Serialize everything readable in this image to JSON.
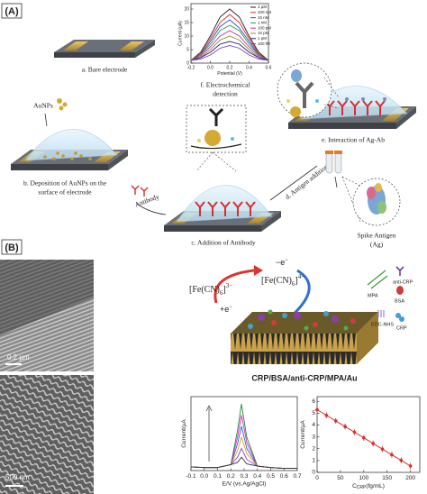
{
  "panel_a": {
    "label": "(A)",
    "steps": {
      "a": "a. Bare electrode",
      "b": [
        "b. Deposition of AuNPs on the",
        "surface of electrode"
      ],
      "c": "c. Addition of Antibody",
      "d": "d. Antigen addition",
      "e": "e. Interaction of Ag-Ab",
      "f": [
        "f. Electrochemical",
        "detection"
      ]
    },
    "aunps": "AuNPs",
    "antibody": "Antibody",
    "spike": [
      "Spike Antigen",
      "(Ag)"
    ]
  },
  "panel_b": {
    "label": "(B)",
    "scale_top": "0.2 µm",
    "scale_bottom": "500 nm",
    "redox": {
      "ox": {
        "open": "[Fe(CN)",
        "sub": "6",
        "close": "]",
        "sup": "3−"
      },
      "red": {
        "open": "[Fe(CN)",
        "sub": "6",
        "close": "]",
        "sup": "4−"
      },
      "minus_e": {
        "sign": "−e",
        "sup": "−"
      },
      "plus_e": {
        "sign": "+e",
        "sup": "−"
      }
    },
    "legend": [
      "MPA",
      "anti-CRP",
      "BSA",
      "EDC-NHS",
      "CRP"
    ],
    "caption": "CRP/BSA/anti-CRP/MPA/Au"
  },
  "chart_data": [
    {
      "type": "line",
      "x_label": "Potential (V)",
      "y_label": "Current (µA)",
      "x": [
        -0.2,
        -0.1,
        0,
        0.1,
        0.2,
        0.3,
        0.4,
        0.5,
        0.6
      ],
      "xlim": [
        -0.2,
        0.6
      ],
      "xticks": [
        -0.2,
        {
          "value": 0,
          "label": "0.0"
        },
        0.2,
        0.4,
        0.6
      ],
      "ylim": [
        0,
        22
      ],
      "yticks": [
        0,
        5,
        10,
        15,
        20
      ],
      "series": [
        {
          "name": "1 µM",
          "color": "#222222",
          "values": [
            1,
            4,
            10,
            17,
            20,
            17,
            10,
            4,
            1
          ]
        },
        {
          "name": "100 nM",
          "color": "#e02424",
          "values": [
            1,
            3.5,
            9,
            15,
            18,
            15,
            9,
            3.5,
            1
          ]
        },
        {
          "name": "10 nM",
          "color": "#2050d0",
          "values": [
            1,
            3,
            8,
            13.5,
            16,
            13,
            8,
            3,
            1
          ]
        },
        {
          "name": "1 nM",
          "color": "#20a040",
          "values": [
            1,
            3,
            7,
            12,
            14,
            12,
            7,
            3,
            1
          ]
        },
        {
          "name": "100 pM",
          "color": "#d020c0",
          "values": [
            1,
            2.5,
            6,
            10,
            12,
            10,
            6,
            2.5,
            1
          ]
        },
        {
          "name": "10 pM",
          "color": "#909020",
          "values": [
            1,
            2,
            5,
            8.5,
            10,
            8.5,
            5,
            2,
            1
          ]
        },
        {
          "name": "1 pM",
          "color": "#102080",
          "values": [
            1,
            2,
            4,
            7,
            8,
            7,
            4,
            2,
            1
          ]
        },
        {
          "name": "100 fM",
          "color": "#8040c0",
          "values": [
            1,
            1.5,
            3,
            5.5,
            6.5,
            5.5,
            3,
            1.5,
            1
          ]
        }
      ]
    },
    {
      "type": "line",
      "x_label": "E/V (vs.Ag/AgCl)",
      "y_label": "Current/µA",
      "x": [
        -0.1,
        0,
        0.1,
        0.2,
        0.25,
        0.28,
        0.32,
        0.4,
        0.5,
        0.6,
        0.7
      ],
      "xlim": [
        -0.1,
        0.7
      ],
      "xticks": [
        -0.1,
        {
          "value": 0,
          "label": "0.0"
        },
        0.1,
        0.2,
        0.3,
        0.4,
        0.5,
        0.6,
        0.7
      ],
      "ylim": [
        0,
        10
      ],
      "series": [
        {
          "color": "#1b8a3a",
          "values": [
            0.5,
            0.4,
            0.4,
            0.8,
            5.4,
            9,
            4.5,
            0.6,
            0.4,
            0.3,
            0.3
          ]
        },
        {
          "color": "#d62fb8",
          "values": [
            0.5,
            0.4,
            0.4,
            0.8,
            4.5,
            7.5,
            3.8,
            0.6,
            0.4,
            0.3,
            0.3
          ]
        },
        {
          "color": "#2f5fd6",
          "values": [
            0.5,
            0.4,
            0.4,
            0.8,
            3.6,
            6,
            3,
            0.6,
            0.4,
            0.3,
            0.3
          ]
        },
        {
          "color": "#e0a020",
          "values": [
            0.5,
            0.4,
            0.4,
            0.8,
            2.7,
            4.5,
            2.3,
            0.6,
            0.4,
            0.3,
            0.3
          ]
        },
        {
          "color": "#8a3fd6",
          "values": [
            0.5,
            0.4,
            0.4,
            0.8,
            1.8,
            3,
            1.5,
            0.6,
            0.4,
            0.3,
            0.3
          ]
        },
        {
          "color": "#333333",
          "values": [
            0.5,
            0.4,
            0.4,
            0.8,
            1.1,
            1.8,
            0.9,
            0.6,
            0.4,
            0.3,
            0.3
          ]
        }
      ]
    },
    {
      "type": "line",
      "markers": true,
      "x_label": {
        "main": "C",
        "sub": "CRP",
        "unit": "(fg/mL)"
      },
      "y_label": "Current/µA",
      "x": [
        0,
        20,
        40,
        60,
        80,
        100,
        120,
        140,
        160,
        180,
        200
      ],
      "xlim": [
        0,
        220
      ],
      "xticks": [
        0,
        50,
        100,
        150,
        200
      ],
      "ylim": [
        0,
        6.4
      ],
      "yticks": [
        0,
        1,
        2,
        3,
        4,
        5,
        6
      ],
      "series": [
        {
          "color": "#d62f2f",
          "values": [
            5.3,
            4.82,
            4.35,
            3.87,
            3.4,
            2.92,
            2.44,
            1.97,
            1.49,
            1.02,
            0.54
          ],
          "errors": [
            0.25,
            0.25,
            0.25,
            0.25,
            0.25,
            0.25,
            0.25,
            0.25,
            0.25,
            0.25,
            0.25
          ]
        }
      ]
    }
  ]
}
